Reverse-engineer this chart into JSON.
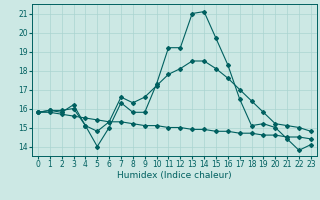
{
  "title": "",
  "xlabel": "Humidex (Indice chaleur)",
  "bg_color": "#cce8e4",
  "grid_color": "#aad4d0",
  "line_color": "#006060",
  "xlim": [
    -0.5,
    23.5
  ],
  "ylim": [
    13.5,
    21.5
  ],
  "xticks": [
    0,
    1,
    2,
    3,
    4,
    5,
    6,
    7,
    8,
    9,
    10,
    11,
    12,
    13,
    14,
    15,
    16,
    17,
    18,
    19,
    20,
    21,
    22,
    23
  ],
  "yticks": [
    14,
    15,
    16,
    17,
    18,
    19,
    20,
    21
  ],
  "line1_y": [
    15.8,
    15.9,
    15.9,
    16.0,
    15.1,
    14.0,
    15.0,
    16.3,
    15.8,
    15.8,
    17.3,
    19.2,
    19.2,
    21.0,
    21.1,
    19.7,
    18.3,
    16.5,
    15.1,
    15.2,
    15.0,
    14.4,
    13.8,
    14.1
  ],
  "line2_y": [
    15.8,
    15.9,
    15.8,
    16.2,
    15.1,
    14.8,
    15.3,
    16.6,
    16.3,
    16.6,
    17.2,
    17.8,
    18.1,
    18.5,
    18.5,
    18.1,
    17.6,
    17.0,
    16.4,
    15.8,
    15.2,
    15.1,
    15.0,
    14.8
  ],
  "line3_y": [
    15.8,
    15.8,
    15.7,
    15.6,
    15.5,
    15.4,
    15.3,
    15.3,
    15.2,
    15.1,
    15.1,
    15.0,
    15.0,
    14.9,
    14.9,
    14.8,
    14.8,
    14.7,
    14.7,
    14.6,
    14.6,
    14.5,
    14.5,
    14.4
  ],
  "tick_fontsize": 5.5,
  "xlabel_fontsize": 6.5
}
